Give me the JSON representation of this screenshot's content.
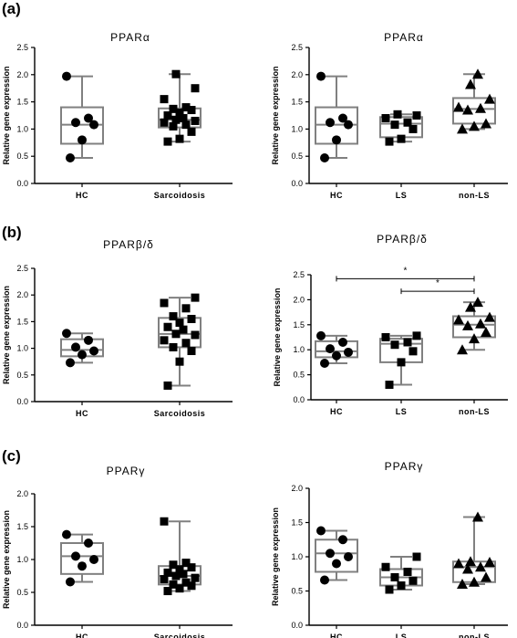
{
  "figure": {
    "panel_labels": [
      "(a)",
      "(b)",
      "(c)"
    ]
  },
  "colors": {
    "box": "#808080",
    "marker": "#000000",
    "axis": "#000000",
    "text": "#000000"
  },
  "chart_data": [
    {
      "id": "a-left",
      "type": "box",
      "title": "PPARα",
      "ylabel": "Relative gene expression",
      "ylim": [
        0,
        2.5
      ],
      "yticks": [
        "0.0",
        "0.5",
        "1.0",
        "1.5",
        "2.0",
        "2.5"
      ],
      "tick_values": [
        0,
        0.5,
        1,
        1.5,
        2,
        2.5
      ],
      "categories": [
        "HC",
        "Sarcoidosis"
      ],
      "series": [
        {
          "category": "HC",
          "marker": "circle",
          "min": 0.47,
          "q1": 0.73,
          "median": 1.08,
          "q3": 1.4,
          "max": 1.97,
          "points": [
            0.47,
            0.8,
            1.08,
            1.12,
            1.2,
            1.97
          ]
        },
        {
          "category": "Sarcoidosis",
          "marker": "square",
          "min": 0.77,
          "q1": 1.03,
          "median": 1.17,
          "q3": 1.38,
          "max": 2.01,
          "points": [
            0.77,
            0.82,
            0.95,
            1.05,
            1.08,
            1.12,
            1.15,
            1.17,
            1.2,
            1.25,
            1.3,
            1.35,
            1.37,
            1.4,
            1.55,
            1.75,
            2.01
          ]
        }
      ]
    },
    {
      "id": "a-right",
      "type": "box",
      "title": "PPARα",
      "ylabel": "Relative gene expression",
      "ylim": [
        0,
        2.5
      ],
      "yticks": [
        "0.0",
        "0.5",
        "1.0",
        "1.5",
        "2.0",
        "2.5"
      ],
      "tick_values": [
        0,
        0.5,
        1,
        1.5,
        2,
        2.5
      ],
      "categories": [
        "HC",
        "LS",
        "non-LS"
      ],
      "series": [
        {
          "category": "HC",
          "marker": "circle",
          "min": 0.47,
          "q1": 0.73,
          "median": 1.08,
          "q3": 1.4,
          "max": 1.97,
          "points": [
            0.47,
            0.8,
            1.08,
            1.12,
            1.2,
            1.97
          ]
        },
        {
          "category": "LS",
          "marker": "square",
          "min": 0.77,
          "q1": 0.85,
          "median": 1.1,
          "q3": 1.22,
          "max": 1.27,
          "points": [
            0.77,
            0.82,
            1.0,
            1.08,
            1.12,
            1.2,
            1.25,
            1.27
          ]
        },
        {
          "category": "non-LS",
          "marker": "triangle",
          "min": 1.0,
          "q1": 1.1,
          "median": 1.37,
          "q3": 1.57,
          "max": 2.01,
          "points": [
            1.0,
            1.05,
            1.1,
            1.35,
            1.38,
            1.4,
            1.55,
            1.82,
            2.01
          ]
        }
      ]
    },
    {
      "id": "b-left",
      "type": "box",
      "title": "PPARβ/δ",
      "ylabel": "Relative gene expression",
      "ylim": [
        0,
        2.5
      ],
      "yticks": [
        "0.0",
        "0.5",
        "1.0",
        "1.5",
        "2.0",
        "2.5"
      ],
      "tick_values": [
        0,
        0.5,
        1,
        1.5,
        2,
        2.5
      ],
      "categories": [
        "HC",
        "Sarcoidosis"
      ],
      "series": [
        {
          "category": "HC",
          "marker": "circle",
          "min": 0.73,
          "q1": 0.85,
          "median": 0.97,
          "q3": 1.17,
          "max": 1.28,
          "points": [
            0.73,
            0.88,
            0.95,
            1.02,
            1.15,
            1.28
          ]
        },
        {
          "category": "Sarcoidosis",
          "marker": "square",
          "min": 0.3,
          "q1": 1.02,
          "median": 1.27,
          "q3": 1.57,
          "max": 1.95,
          "points": [
            0.3,
            0.75,
            0.95,
            1.02,
            1.1,
            1.15,
            1.25,
            1.27,
            1.35,
            1.4,
            1.48,
            1.55,
            1.6,
            1.75,
            1.85,
            1.95
          ]
        }
      ]
    },
    {
      "id": "b-right",
      "type": "box",
      "title": "PPARβ/δ",
      "ylabel": "Relative gene expression",
      "ylim": [
        0,
        2.5
      ],
      "yticks": [
        "0.0",
        "0.5",
        "1.0",
        "1.5",
        "2.0",
        "2.5"
      ],
      "tick_values": [
        0,
        0.5,
        1,
        1.5,
        2,
        2.5
      ],
      "categories": [
        "HC",
        "LS",
        "non-LS"
      ],
      "series": [
        {
          "category": "HC",
          "marker": "circle",
          "min": 0.73,
          "q1": 0.85,
          "median": 0.97,
          "q3": 1.17,
          "max": 1.28,
          "points": [
            0.73,
            0.88,
            0.95,
            1.02,
            1.15,
            1.28
          ]
        },
        {
          "category": "LS",
          "marker": "square",
          "min": 0.3,
          "q1": 0.75,
          "median": 1.12,
          "q3": 1.22,
          "max": 1.28,
          "points": [
            0.3,
            0.75,
            0.97,
            1.1,
            1.15,
            1.25,
            1.28
          ]
        },
        {
          "category": "non-LS",
          "marker": "triangle",
          "min": 1.0,
          "q1": 1.25,
          "median": 1.5,
          "q3": 1.67,
          "max": 1.95,
          "points": [
            1.0,
            1.22,
            1.35,
            1.48,
            1.52,
            1.6,
            1.65,
            1.85,
            1.95
          ]
        }
      ],
      "significance": [
        {
          "from": "HC",
          "to": "non-LS",
          "y": 2.42,
          "label": "*"
        },
        {
          "from": "LS",
          "to": "non-LS",
          "y": 2.17,
          "label": "*"
        }
      ]
    },
    {
      "id": "c-left",
      "type": "box",
      "title": "PPARγ",
      "ylabel": "Relative gene expression",
      "ylim": [
        0,
        2.0
      ],
      "yticks": [
        "0.0",
        "0.5",
        "1.0",
        "1.5",
        "2.0"
      ],
      "tick_values": [
        0,
        0.5,
        1,
        1.5,
        2
      ],
      "categories": [
        "HC",
        "Sarcoidosis"
      ],
      "series": [
        {
          "category": "HC",
          "marker": "circle",
          "min": 0.66,
          "q1": 0.78,
          "median": 1.05,
          "q3": 1.25,
          "max": 1.38,
          "points": [
            0.66,
            0.9,
            1.0,
            1.05,
            1.25,
            1.38
          ]
        },
        {
          "category": "Sarcoidosis",
          "marker": "square",
          "min": 0.52,
          "q1": 0.62,
          "median": 0.75,
          "q3": 0.9,
          "max": 1.58,
          "points": [
            0.52,
            0.56,
            0.6,
            0.62,
            0.65,
            0.7,
            0.72,
            0.75,
            0.78,
            0.8,
            0.85,
            0.88,
            0.92,
            0.95,
            1.58
          ]
        }
      ]
    },
    {
      "id": "c-right",
      "type": "box",
      "title": "PPARγ",
      "ylabel": "Relative gene expression",
      "ylim": [
        0,
        2.0
      ],
      "yticks": [
        "0.0",
        "0.5",
        "1.0",
        "1.5",
        "2.0"
      ],
      "tick_values": [
        0,
        0.5,
        1,
        1.5,
        2
      ],
      "categories": [
        "HC",
        "LS",
        "non-LS"
      ],
      "series": [
        {
          "category": "HC",
          "marker": "circle",
          "min": 0.66,
          "q1": 0.78,
          "median": 1.05,
          "q3": 1.25,
          "max": 1.38,
          "points": [
            0.66,
            0.9,
            1.0,
            1.05,
            1.25,
            1.38
          ]
        },
        {
          "category": "LS",
          "marker": "square",
          "min": 0.52,
          "q1": 0.58,
          "median": 0.7,
          "q3": 0.82,
          "max": 1.0,
          "points": [
            0.52,
            0.58,
            0.65,
            0.7,
            0.78,
            0.85,
            1.0
          ]
        },
        {
          "category": "non-LS",
          "marker": "triangle",
          "min": 0.6,
          "q1": 0.63,
          "median": 0.85,
          "q3": 0.93,
          "max": 1.58,
          "points": [
            0.6,
            0.63,
            0.7,
            0.82,
            0.85,
            0.9,
            0.92,
            0.93,
            1.58
          ]
        }
      ]
    }
  ]
}
